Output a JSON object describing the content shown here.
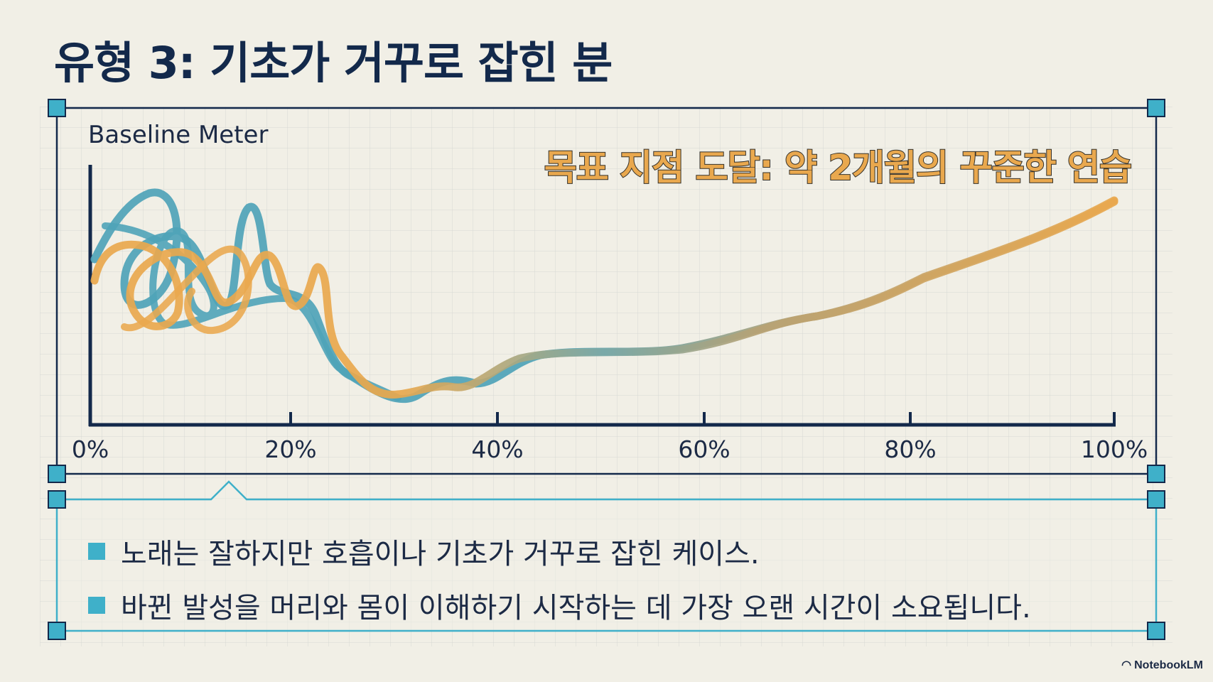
{
  "title": "유형 3: 기초가 거꾸로 잡힌 분",
  "chart_data": {
    "type": "line",
    "ylabel": "Baseline Meter",
    "xlabel": "",
    "x_ticks": [
      "0%",
      "20%",
      "40%",
      "60%",
      "80%",
      "100%"
    ],
    "xlim": [
      0,
      100
    ],
    "annotation": "목표 지점 도달: 약 2개월의 꾸준한 연습",
    "series": [
      {
        "color": "#4fa3b8",
        "points": [
          [
            0,
            55
          ],
          [
            3,
            95
          ],
          [
            6,
            100
          ],
          [
            9,
            60
          ],
          [
            12,
            75
          ],
          [
            15,
            90
          ],
          [
            18,
            60
          ],
          [
            22,
            40
          ],
          [
            25,
            10
          ],
          [
            30,
            5
          ],
          [
            35,
            8
          ],
          [
            40,
            18
          ],
          [
            50,
            30
          ],
          [
            60,
            32
          ],
          [
            70,
            42
          ],
          [
            80,
            58
          ],
          [
            90,
            72
          ],
          [
            100,
            88
          ]
        ]
      },
      {
        "color": "#e9a84e",
        "points": [
          [
            0,
            60
          ],
          [
            3,
            80
          ],
          [
            6,
            65
          ],
          [
            9,
            45
          ],
          [
            12,
            78
          ],
          [
            15,
            55
          ],
          [
            18,
            70
          ],
          [
            22,
            45
          ],
          [
            25,
            8
          ],
          [
            30,
            4
          ],
          [
            35,
            12
          ],
          [
            40,
            18
          ],
          [
            50,
            30
          ],
          [
            60,
            32
          ],
          [
            70,
            42
          ],
          [
            80,
            58
          ],
          [
            90,
            72
          ],
          [
            100,
            88
          ]
        ]
      }
    ]
  },
  "bullets": [
    "노래는 잘하지만 호흡이나 기초가 거꾸로 잡힌 케이스.",
    "바뀐 발성을 머리와 몸이 이해하기 시작하는 데 가장 오랜 시간이 소요됩니다."
  ],
  "brand": "NotebookLM",
  "colors": {
    "navy": "#13294b",
    "teal": "#3fb0c9",
    "orange": "#e9a84e",
    "background": "#f1efe6"
  }
}
